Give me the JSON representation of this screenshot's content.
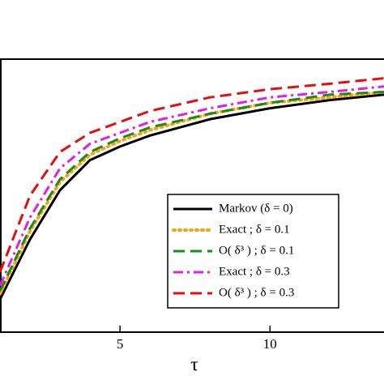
{
  "chart_data": {
    "type": "line",
    "x_label": "τ",
    "x": [
      1,
      2,
      3,
      4,
      5,
      6,
      8,
      10,
      12,
      13.8
    ],
    "xlim": [
      1,
      13.8
    ],
    "xticks": [
      5,
      10
    ],
    "ylim": [
      0,
      1
    ],
    "legend": "lower right",
    "series": [
      {
        "name": "Markov (δ = 0)",
        "color": "#000000",
        "style": "solid",
        "values": [
          0.12,
          0.34,
          0.52,
          0.63,
          0.68,
          0.72,
          0.78,
          0.82,
          0.85,
          0.87
        ]
      },
      {
        "name": "Exact ; δ = 0.1",
        "color": "#f5a31a",
        "style": "dotted",
        "values": [
          0.14,
          0.37,
          0.55,
          0.65,
          0.7,
          0.74,
          0.8,
          0.84,
          0.86,
          0.88
        ]
      },
      {
        "name": "O( δ³ ) ; δ = 0.1",
        "color": "#1a8a1a",
        "style": "dashed",
        "values": [
          0.15,
          0.38,
          0.56,
          0.66,
          0.71,
          0.75,
          0.8,
          0.84,
          0.87,
          0.88
        ]
      },
      {
        "name": "Exact ; δ = 0.3",
        "color": "#e020e0",
        "style": "dashdot",
        "values": [
          0.17,
          0.42,
          0.6,
          0.69,
          0.73,
          0.77,
          0.82,
          0.86,
          0.88,
          0.9
        ]
      },
      {
        "name": "O( δ³ ) ; δ = 0.3",
        "color": "#e01010",
        "style": "dashed",
        "values": [
          0.22,
          0.5,
          0.66,
          0.73,
          0.77,
          0.81,
          0.86,
          0.89,
          0.91,
          0.93
        ]
      }
    ]
  }
}
